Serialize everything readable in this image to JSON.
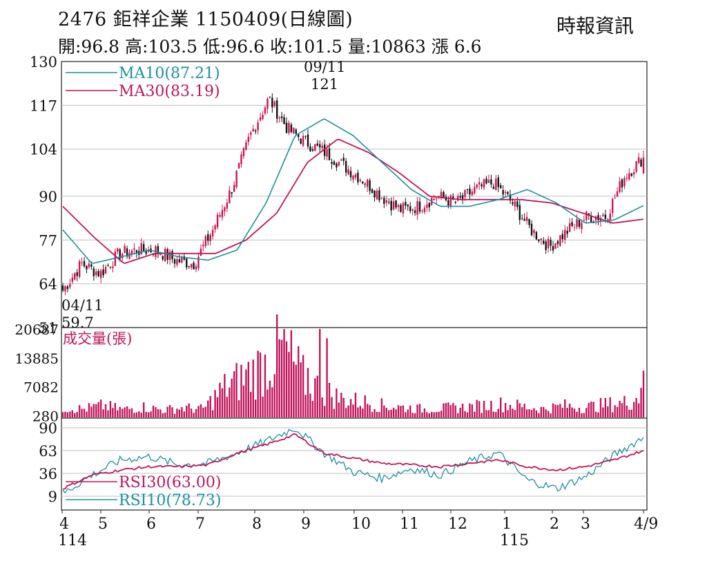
{
  "header": {
    "title": "2476  鉅祥企業 1150409(日線圖)",
    "source": "時報資訊",
    "quote": "開:96.8 高:103.5 低:96.6 收:101.5 量:10863 漲 6.6"
  },
  "colors": {
    "up": "#d0104c",
    "down": "#111111",
    "ma10": "#1a8fa0",
    "ma30": "#c0145a",
    "volume": "#c0145a",
    "rsi30": "#c0145a",
    "rsi10": "#1a8fa0",
    "grid": "#bfbfbf",
    "axis": "#333333"
  },
  "chart_data": [
    {
      "type": "candlestick",
      "panel": "price",
      "yticks": [
        130,
        117,
        104,
        90,
        77,
        64,
        51
      ],
      "ylim": [
        51,
        130
      ],
      "legend": [
        {
          "label": "MA10(87.21)",
          "color": "#1a8fa0"
        },
        {
          "label": "MA30(83.19)",
          "color": "#c0145a"
        }
      ],
      "annotations": [
        {
          "label": "09/11",
          "value": "121",
          "series_point": "high"
        },
        {
          "label": "04/11",
          "value": "59.7",
          "series_point": "low"
        }
      ],
      "last_candle": {
        "open": 96.8,
        "high": 103.5,
        "low": 96.6,
        "close": 101.5
      },
      "close_anchors": [
        [
          "04",
          62
        ],
        [
          "04",
          70
        ],
        [
          "05",
          67
        ],
        [
          "05",
          73
        ],
        [
          "06",
          74
        ],
        [
          "06",
          74
        ],
        [
          "07",
          71
        ],
        [
          "07",
          70
        ],
        [
          "08",
          80
        ],
        [
          "08",
          92
        ],
        [
          "09",
          108
        ],
        [
          "09",
          119
        ],
        [
          "09",
          110
        ],
        [
          "10",
          106
        ],
        [
          "10",
          103
        ],
        [
          "11",
          99
        ],
        [
          "11",
          95
        ],
        [
          "11",
          90
        ],
        [
          "12",
          86
        ],
        [
          "12",
          87
        ],
        [
          "12",
          90
        ],
        [
          "01",
          88
        ],
        [
          "01",
          92
        ],
        [
          "01",
          94
        ],
        [
          "02",
          88
        ],
        [
          "02",
          80
        ],
        [
          "03",
          75
        ],
        [
          "03",
          80
        ],
        [
          "03",
          84
        ],
        [
          "04",
          84
        ],
        [
          "04",
          96
        ],
        [
          "04",
          101.5
        ]
      ],
      "ma10_anchors": [
        80,
        70,
        72,
        74,
        72,
        71,
        74,
        88,
        108,
        113,
        108,
        100,
        92,
        87,
        87,
        89,
        92,
        88,
        82,
        83,
        87.21
      ],
      "ma30_anchors": [
        87,
        78,
        70,
        73,
        73,
        73,
        77,
        85,
        100,
        107,
        103,
        97,
        90,
        89,
        89,
        89,
        88,
        85,
        82,
        83.19
      ]
    },
    {
      "type": "bar",
      "panel": "volume",
      "title": "成交量(張)",
      "yticks": [
        20687,
        13885,
        7082,
        280
      ],
      "ylim": [
        0,
        20687
      ],
      "last_value": 10863,
      "peaks": [
        {
          "month": "09",
          "value": 20687
        },
        {
          "month": "09",
          "value": 18500
        },
        {
          "month": "08",
          "value": 11500
        },
        {
          "month": "04",
          "value": 10863
        }
      ]
    },
    {
      "type": "line",
      "panel": "rsi",
      "yticks": [
        90,
        63,
        36,
        9
      ],
      "ylim": [
        9,
        90
      ],
      "legend": [
        {
          "label": "RSI30(63.00)",
          "color": "#c0145a"
        },
        {
          "label": "RSI10(78.73)",
          "color": "#1a8fa0"
        }
      ],
      "rsi10_anchors": [
        12,
        34,
        52,
        56,
        46,
        48,
        60,
        74,
        90,
        60,
        38,
        30,
        42,
        34,
        50,
        60,
        28,
        18,
        32,
        58,
        78.73
      ],
      "rsi30_anchors": [
        18,
        34,
        40,
        44,
        44,
        46,
        60,
        70,
        82,
        60,
        54,
        48,
        46,
        44,
        48,
        52,
        44,
        40,
        44,
        52,
        63.0
      ]
    }
  ],
  "x_axis": {
    "labels": [
      "4",
      "5",
      "6",
      "7",
      "8",
      "9",
      "10",
      "11",
      "12",
      "1",
      "2",
      "3",
      "4/9"
    ],
    "year_labels": [
      "114",
      "115"
    ]
  }
}
